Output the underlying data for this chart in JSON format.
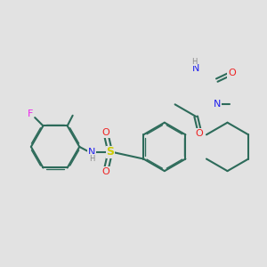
{
  "bg": "#e2e2e2",
  "bc": "#2d6b5a",
  "lw": 1.5,
  "fs": 8.0,
  "dbo": 0.05,
  "colors": {
    "N": "#2222ee",
    "O": "#ee2222",
    "S": "#cccc00",
    "F": "#ee22ee",
    "H": "#888888",
    "C": "#2d6b5a"
  },
  "xlim": [
    0.5,
    9.5
  ],
  "ylim": [
    2.8,
    8.2
  ]
}
